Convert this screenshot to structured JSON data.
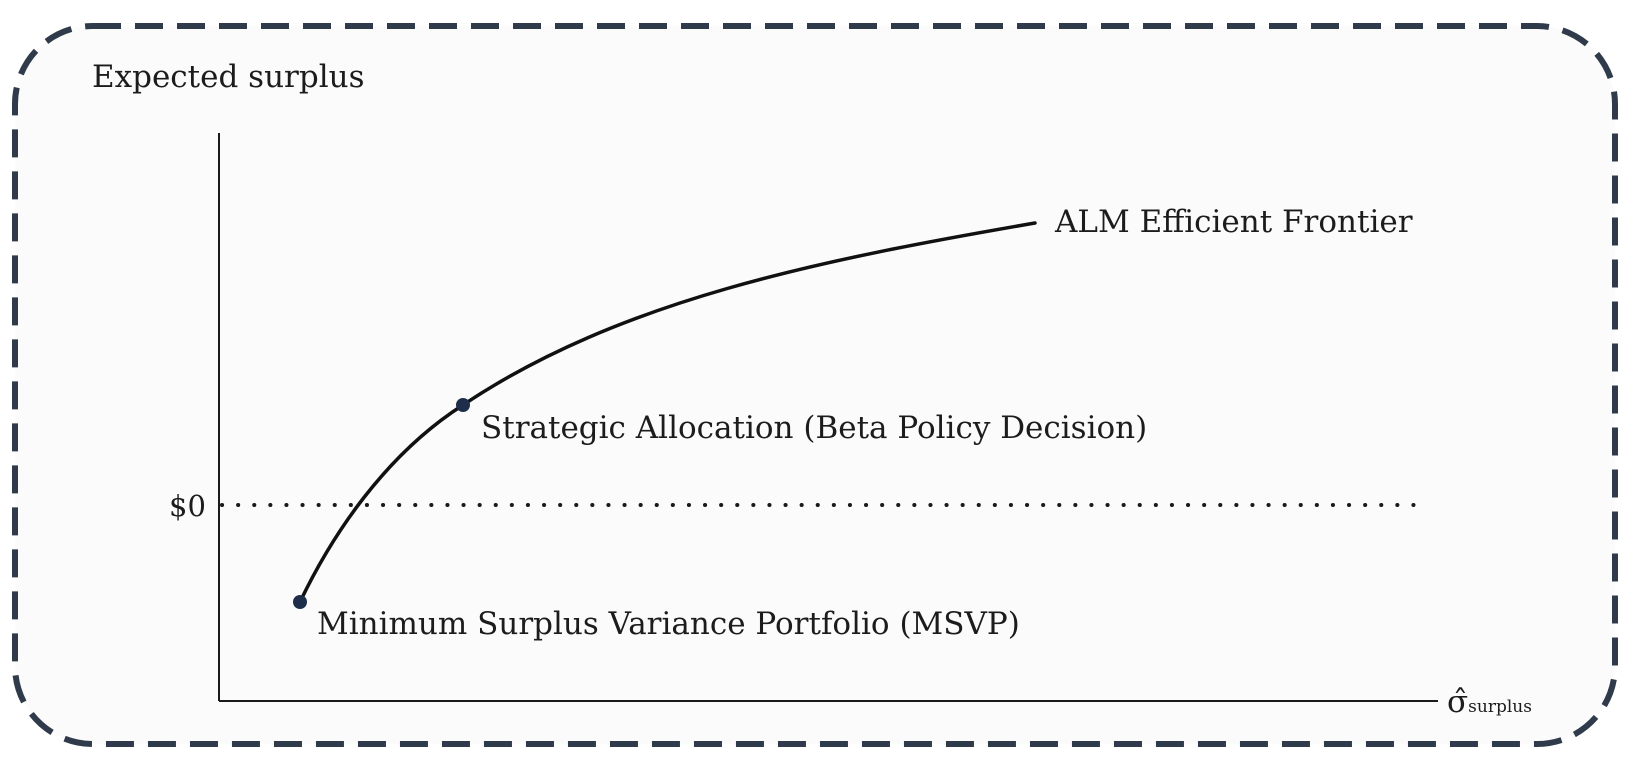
{
  "chart_data": {
    "type": "line",
    "ylabel": "Expected surplus",
    "xlabel_symbol": "σ̂",
    "xlabel_subscript": "surplus",
    "y_tick_zero_label": "$0",
    "zero_line_style": "dotted",
    "frame_style": "dashed rounded border",
    "colors": {
      "frame": "#2f3b4a",
      "curve": "#111111",
      "point": "#1e2e4a",
      "background": "#fbfbfb"
    },
    "series": [
      {
        "name": "ALM Efficient Frontier",
        "shape": "concave increasing curve"
      }
    ],
    "annotations": [
      {
        "label": "Strategic Allocation (Beta Policy Decision)",
        "point": "on frontier, above $0"
      },
      {
        "label": "Minimum Surplus Variance Portfolio (MSVP)",
        "point": "start of frontier, below $0"
      }
    ]
  }
}
